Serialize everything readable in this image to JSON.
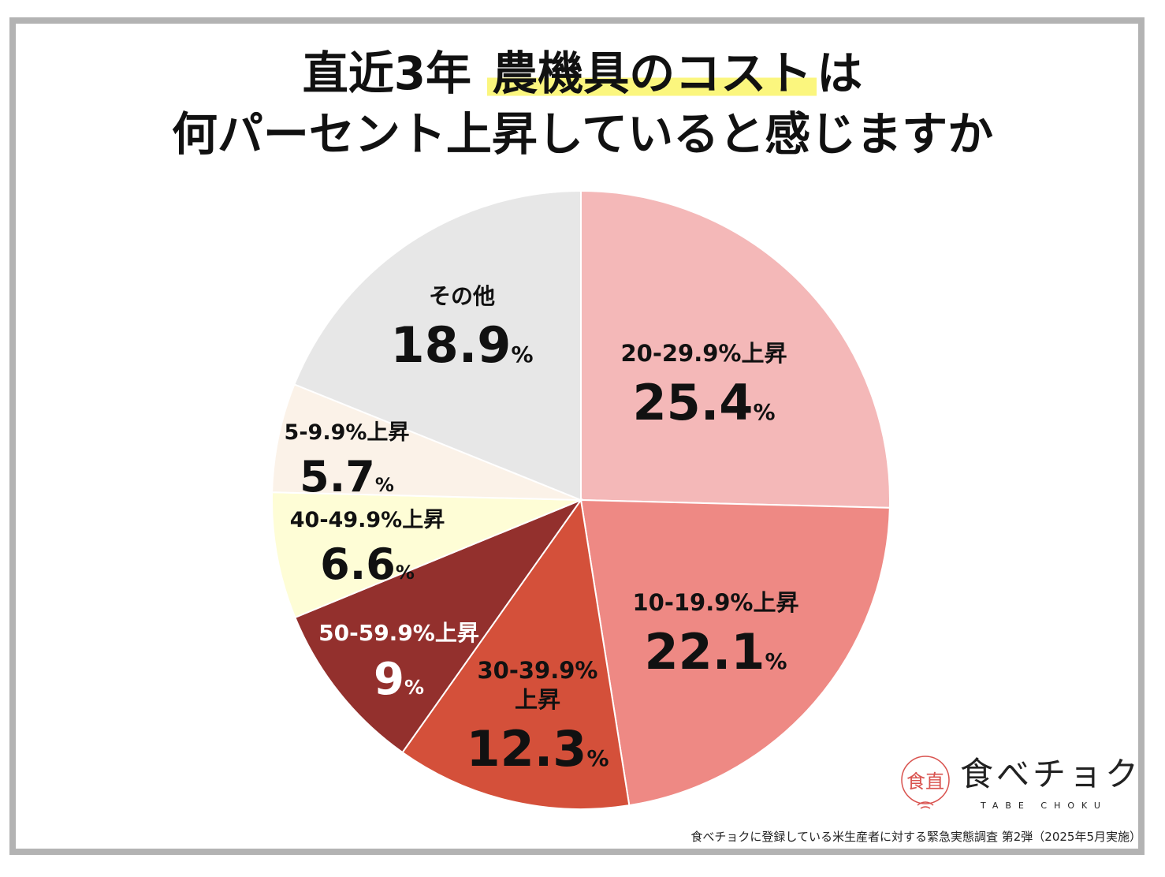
{
  "title": {
    "line1_prefix": "直近3年 ",
    "line1_highlight": "農機具のコスト",
    "line1_suffix": "は",
    "line2": "何パーセント上昇していると感じますか"
  },
  "chart_data": {
    "type": "pie",
    "unit": "%",
    "start": "12 o'clock",
    "direction": "clockwise",
    "slices": [
      {
        "label": "20-29.9%上昇",
        "value": 25.4,
        "display": "25.4",
        "color": "#f4b8b8",
        "text_color": "#111111"
      },
      {
        "label": "10-19.9%上昇",
        "value": 22.1,
        "display": "22.1",
        "color": "#ee8984",
        "text_color": "#111111"
      },
      {
        "label": "30-39.9%上昇",
        "value": 12.3,
        "display": "12.3",
        "color": "#d4503a",
        "text_color": "#111111"
      },
      {
        "label": "50-59.9%上昇",
        "value": 9,
        "display": "9",
        "color": "#93302d",
        "text_color": "#ffffff"
      },
      {
        "label": "40-49.9%上昇",
        "value": 6.6,
        "display": "6.6",
        "color": "#fefdd6",
        "text_color": "#111111"
      },
      {
        "label": "5-9.9%上昇",
        "value": 5.7,
        "display": "5.7",
        "color": "#fbf2e8",
        "text_color": "#111111"
      },
      {
        "label": "その他",
        "value": 18.9,
        "display": "18.9",
        "color": "#e7e7e7",
        "text_color": "#111111"
      }
    ]
  },
  "logo": {
    "mark": "食直",
    "name": "食べチョク",
    "sub": "TABE CHOKU"
  },
  "footnote": "食べチョクに登録している米生産者に対する緊急実態調査 第2弾（2025年5月実施）"
}
